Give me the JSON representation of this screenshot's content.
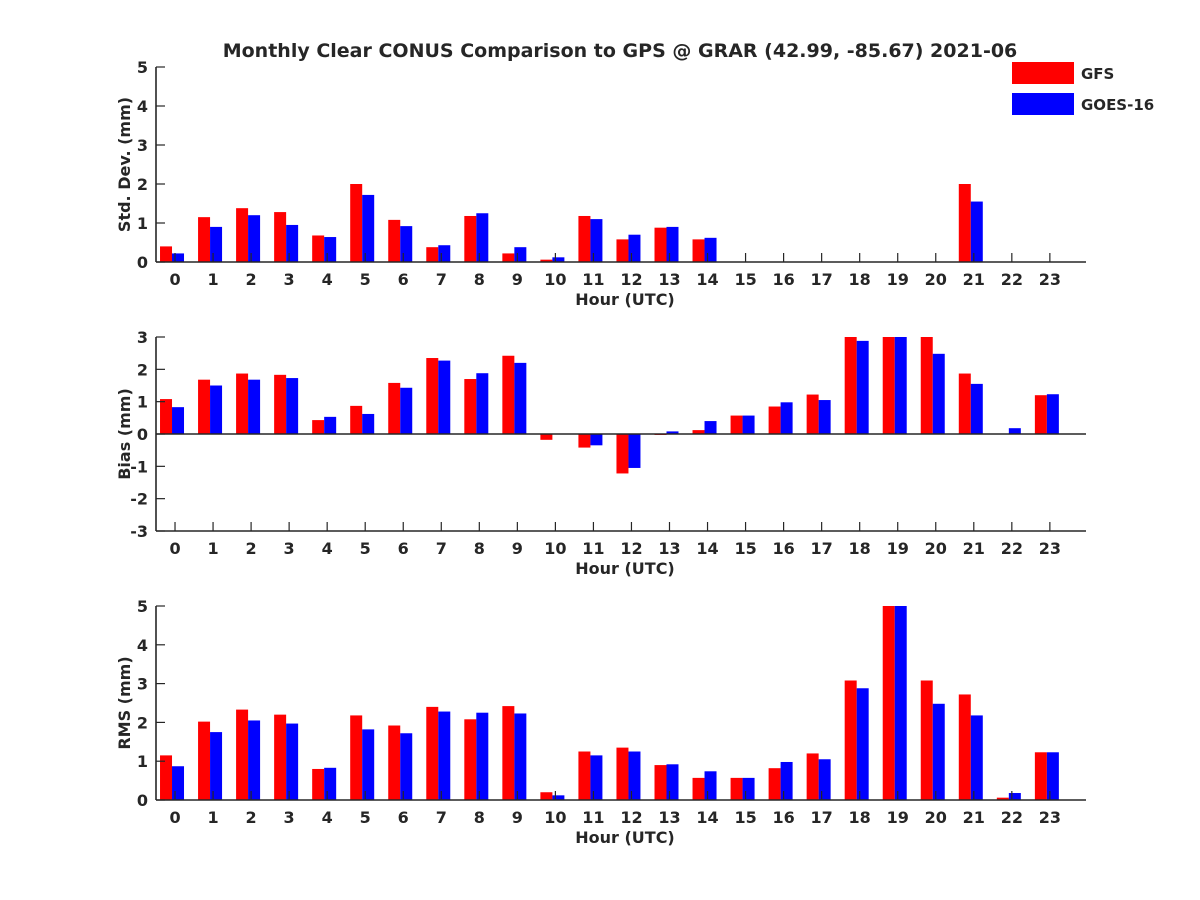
{
  "title": "Monthly Clear CONUS Comparison to GPS @ GRAR (42.99, -85.67) 2021-06",
  "legend": {
    "placement": "top-right",
    "entries": [
      {
        "name": "GFS",
        "color": "#ff0000"
      },
      {
        "name": "GOES-16",
        "color": "#0000ff"
      }
    ]
  },
  "chart_data": [
    {
      "type": "bar",
      "name": "std-dev",
      "title": "Monthly Clear CONUS Comparison to GPS @ GRAR (42.99, -85.67) 2021-06",
      "xlabel": "Hour (UTC)",
      "ylabel": "Std. Dev. (mm)",
      "ylim": [
        0,
        5
      ],
      "yticks": [
        0,
        1,
        2,
        3,
        4,
        5
      ],
      "categories": [
        "0",
        "1",
        "2",
        "3",
        "4",
        "5",
        "6",
        "7",
        "8",
        "9",
        "10",
        "11",
        "12",
        "13",
        "14",
        "15",
        "16",
        "17",
        "18",
        "19",
        "20",
        "21",
        "22",
        "23"
      ],
      "series": [
        {
          "name": "GFS",
          "color": "#ff0000",
          "values": [
            0.4,
            1.15,
            1.38,
            1.28,
            0.68,
            2.0,
            1.08,
            0.38,
            1.18,
            0.22,
            0.06,
            1.18,
            0.58,
            0.88,
            0.58,
            null,
            null,
            null,
            null,
            null,
            null,
            2.0,
            null,
            null
          ]
        },
        {
          "name": "GOES-16",
          "color": "#0000ff",
          "values": [
            0.22,
            0.9,
            1.2,
            0.95,
            0.64,
            1.72,
            0.92,
            0.43,
            1.25,
            0.38,
            0.12,
            1.1,
            0.7,
            0.9,
            0.62,
            null,
            null,
            null,
            null,
            null,
            null,
            1.55,
            null,
            null
          ]
        }
      ]
    },
    {
      "type": "bar",
      "name": "bias",
      "xlabel": "Hour (UTC)",
      "ylabel": "Bias (mm)",
      "ylim": [
        -3,
        3
      ],
      "yticks": [
        -3,
        -2,
        -1,
        0,
        1,
        2,
        3
      ],
      "categories": [
        "0",
        "1",
        "2",
        "3",
        "4",
        "5",
        "6",
        "7",
        "8",
        "9",
        "10",
        "11",
        "12",
        "13",
        "14",
        "15",
        "16",
        "17",
        "18",
        "19",
        "20",
        "21",
        "22",
        "23"
      ],
      "series": [
        {
          "name": "GFS",
          "color": "#ff0000",
          "values": [
            1.08,
            1.68,
            1.87,
            1.83,
            0.43,
            0.87,
            1.58,
            2.35,
            1.7,
            2.42,
            -0.18,
            -0.42,
            -1.22,
            -0.03,
            0.12,
            0.57,
            0.85,
            1.22,
            3.0,
            3.0,
            3.0,
            1.87,
            0.0,
            1.2
          ]
        },
        {
          "name": "GOES-16",
          "color": "#0000ff",
          "values": [
            0.83,
            1.5,
            1.68,
            1.73,
            0.53,
            0.62,
            1.43,
            2.27,
            1.88,
            2.2,
            0.0,
            -0.35,
            -1.05,
            0.08,
            0.4,
            0.57,
            0.98,
            1.05,
            2.88,
            3.0,
            2.48,
            1.55,
            0.18,
            1.23
          ]
        }
      ]
    },
    {
      "type": "bar",
      "name": "rms",
      "xlabel": "Hour (UTC)",
      "ylabel": "RMS (mm)",
      "ylim": [
        0,
        5
      ],
      "yticks": [
        0,
        1,
        2,
        3,
        4,
        5
      ],
      "categories": [
        "0",
        "1",
        "2",
        "3",
        "4",
        "5",
        "6",
        "7",
        "8",
        "9",
        "10",
        "11",
        "12",
        "13",
        "14",
        "15",
        "16",
        "17",
        "18",
        "19",
        "20",
        "21",
        "22",
        "23"
      ],
      "series": [
        {
          "name": "GFS",
          "color": "#ff0000",
          "values": [
            1.15,
            2.02,
            2.33,
            2.2,
            0.8,
            2.18,
            1.92,
            2.4,
            2.08,
            2.42,
            0.2,
            1.25,
            1.35,
            0.9,
            0.57,
            0.57,
            0.82,
            1.2,
            3.08,
            5.0,
            3.08,
            2.72,
            0.06,
            1.23
          ]
        },
        {
          "name": "GOES-16",
          "color": "#0000ff",
          "values": [
            0.87,
            1.75,
            2.05,
            1.97,
            0.83,
            1.82,
            1.72,
            2.28,
            2.25,
            2.23,
            0.12,
            1.15,
            1.25,
            0.92,
            0.74,
            0.57,
            0.98,
            1.05,
            2.88,
            5.0,
            2.48,
            2.18,
            0.18,
            1.23
          ]
        }
      ]
    }
  ]
}
